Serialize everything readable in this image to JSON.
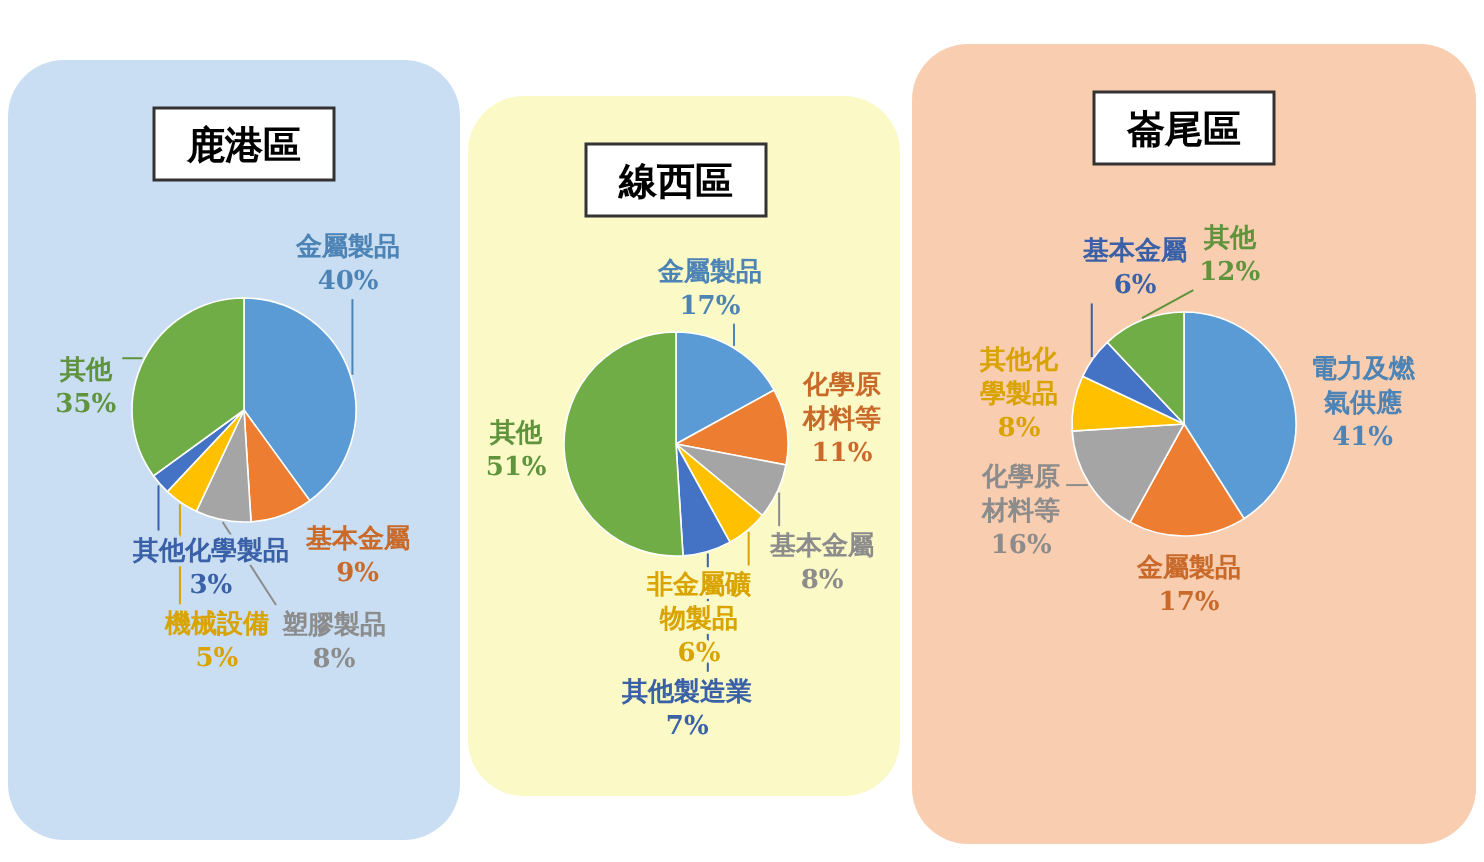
{
  "chart_data": [
    {
      "type": "pie",
      "title": "鹿港區",
      "categories": [
        "金屬製品",
        "基本金屬",
        "塑膠製品",
        "機械設備",
        "其他化學製品",
        "其他"
      ],
      "values": [
        40,
        9,
        8,
        5,
        3,
        35
      ],
      "value_labels": [
        "40%",
        "9%",
        "8%",
        "5%",
        "3%",
        "35%"
      ],
      "colors": [
        "#5b9bd5",
        "#ed7d31",
        "#a5a5a5",
        "#ffc000",
        "#4472c4",
        "#70ad47"
      ]
    },
    {
      "type": "pie",
      "title": "線西區",
      "categories": [
        "金屬製品",
        "化學原材料等",
        "基本金屬",
        "非金屬礦物製品",
        "其他製造業",
        "其他"
      ],
      "values": [
        17,
        11,
        8,
        6,
        7,
        51
      ],
      "value_labels": [
        "17%",
        "11%",
        "8%",
        "6%",
        "7%",
        "51%"
      ],
      "colors": [
        "#5b9bd5",
        "#ed7d31",
        "#a5a5a5",
        "#ffc000",
        "#4472c4",
        "#70ad47"
      ]
    },
    {
      "type": "pie",
      "title": "崙尾區",
      "categories": [
        "電力及燃氣供應",
        "金屬製品",
        "化學原材料等",
        "其他化學製品",
        "基本金屬",
        "其他"
      ],
      "values": [
        41,
        17,
        16,
        8,
        6,
        12
      ],
      "value_labels": [
        "41%",
        "17%",
        "16%",
        "8%",
        "6%",
        "12%"
      ],
      "colors": [
        "#5b9bd5",
        "#ed7d31",
        "#a5a5a5",
        "#ffc000",
        "#4472c4",
        "#70ad47"
      ]
    }
  ]
}
